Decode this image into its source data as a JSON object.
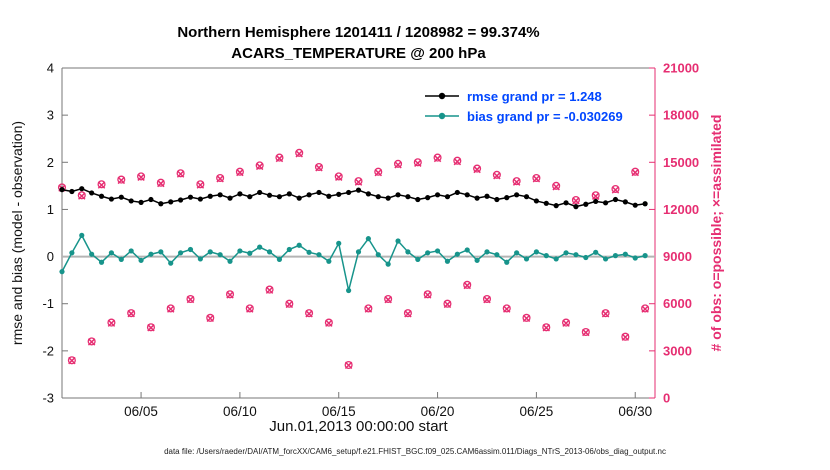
{
  "titles": {
    "line1": "Northern Hemisphere 1201411 / 1208982 = 99.374%",
    "line2": "ACARS_TEMPERATURE @ 200 hPa"
  },
  "axes": {
    "left_label": "rmse and bias (model - observation)",
    "right_label": "# of obs: o=possible; ×=assimilated",
    "x_label": "Jun.01,2013 00:00:00 start",
    "left_ticks": [
      -3,
      -2,
      -1,
      0,
      1,
      2,
      3,
      4
    ],
    "right_ticks": [
      0,
      3000,
      6000,
      9000,
      12000,
      15000,
      18000,
      21000
    ],
    "x_tick_values": [
      4,
      9,
      14,
      19,
      24,
      29
    ],
    "x_tick_labels": [
      "06/05",
      "06/10",
      "06/15",
      "06/20",
      "06/25",
      "06/30"
    ],
    "x_range": [
      0,
      30
    ],
    "left_range": [
      -3,
      4
    ],
    "right_range": [
      0,
      21000
    ]
  },
  "legend": {
    "rmse": "rmse grand pr = 1.248",
    "bias": "bias grand pr = -0.030269"
  },
  "footer": {
    "text": "data file: /Users/raeder/DAI/ATM_forcXX/CAM6_setup/f.e21.FHIST_BGC.f09_025.CAM6assim.011/Diags_NTrS_2013-06/obs_diag_output.nc"
  },
  "colors": {
    "rmse_line": "#000000",
    "bias_line": "#17948b",
    "obs_pink": "#e62e72",
    "legend_text": "#0046ff",
    "zero_line": "#b4b4b4",
    "axis_box": "#777777",
    "tick_text": "#111111"
  },
  "chart_data": {
    "type": "line",
    "title": "Northern Hemisphere 1201411 / 1208982 = 99.374% | ACARS_TEMPERATURE @ 200 hPa",
    "xlabel": "Jun.01,2013 00:00:00 start",
    "ylabel_left": "rmse and bias (model - observation)",
    "ylabel_right": "# of obs: o=possible; ×=assimilated",
    "x_days_since_jun1": [
      0,
      0.5,
      1,
      1.5,
      2,
      2.5,
      3,
      3.5,
      4,
      4.5,
      5,
      5.5,
      6,
      6.5,
      7,
      7.5,
      8,
      8.5,
      9,
      9.5,
      10,
      10.5,
      11,
      11.5,
      12,
      12.5,
      13,
      13.5,
      14,
      14.5,
      15,
      15.5,
      16,
      16.5,
      17,
      17.5,
      18,
      18.5,
      19,
      19.5,
      20,
      20.5,
      21,
      21.5,
      22,
      22.5,
      23,
      23.5,
      24,
      24.5,
      25,
      25.5,
      26,
      26.5,
      27,
      27.5,
      28,
      28.5,
      29,
      29.5
    ],
    "series": [
      {
        "name": "rmse",
        "axis": "left",
        "marker": "filled-circle",
        "color": "#000000",
        "grand_value": 1.248,
        "values": [
          1.42,
          1.38,
          1.44,
          1.35,
          1.28,
          1.22,
          1.26,
          1.18,
          1.15,
          1.21,
          1.12,
          1.16,
          1.2,
          1.26,
          1.22,
          1.28,
          1.31,
          1.24,
          1.33,
          1.27,
          1.36,
          1.3,
          1.27,
          1.33,
          1.24,
          1.31,
          1.36,
          1.28,
          1.32,
          1.36,
          1.41,
          1.33,
          1.27,
          1.24,
          1.31,
          1.27,
          1.21,
          1.25,
          1.31,
          1.27,
          1.36,
          1.31,
          1.24,
          1.28,
          1.21,
          1.25,
          1.31,
          1.27,
          1.18,
          1.13,
          1.08,
          1.14,
          1.06,
          1.11,
          1.17,
          1.14,
          1.21,
          1.16,
          1.09,
          1.12
        ]
      },
      {
        "name": "bias",
        "axis": "left",
        "marker": "filled-circle",
        "color": "#17948b",
        "grand_value": -0.030269,
        "values": [
          -0.32,
          0.08,
          0.45,
          0.05,
          -0.12,
          0.08,
          -0.06,
          0.12,
          -0.08,
          0.05,
          0.1,
          -0.14,
          0.08,
          0.15,
          -0.05,
          0.1,
          0.04,
          -0.1,
          0.12,
          0.07,
          0.2,
          0.1,
          -0.06,
          0.15,
          0.24,
          0.09,
          0.04,
          -0.1,
          0.28,
          -0.72,
          0.1,
          0.38,
          0.04,
          -0.16,
          0.33,
          0.1,
          -0.06,
          0.08,
          0.12,
          -0.1,
          0.05,
          0.14,
          -0.08,
          0.1,
          0.04,
          -0.12,
          0.08,
          -0.05,
          0.1,
          0.02,
          -0.05,
          0.08,
          0.04,
          -0.02,
          0.09,
          -0.05,
          0.02,
          0.05,
          -0.03,
          0.02
        ]
      },
      {
        "name": "obs_possible",
        "axis": "right",
        "marker": "circle",
        "color": "#e62e72",
        "total": 1208982,
        "values": [
          13400,
          2400,
          12900,
          3600,
          13600,
          4800,
          13900,
          5400,
          14100,
          4500,
          13700,
          5700,
          14300,
          6300,
          13600,
          5100,
          14000,
          6600,
          14400,
          5700,
          14800,
          6900,
          15300,
          6000,
          15600,
          5400,
          14700,
          4800,
          14100,
          2100,
          13800,
          5700,
          14400,
          6300,
          14900,
          5400,
          15000,
          6600,
          15300,
          6000,
          15100,
          7200,
          14600,
          6300,
          14200,
          5700,
          13800,
          5100,
          14000,
          4500,
          13500,
          4800,
          12600,
          4200,
          12900,
          5400,
          13300,
          3900,
          14400,
          5700
        ]
      },
      {
        "name": "obs_assimilated",
        "axis": "right",
        "marker": "x",
        "color": "#e62e72",
        "total": 1201411,
        "values": [
          13360,
          2380,
          12850,
          3570,
          13550,
          4760,
          13850,
          5370,
          14050,
          4470,
          13650,
          5660,
          14250,
          6270,
          13550,
          5070,
          13950,
          6560,
          14350,
          5660,
          14740,
          6860,
          15240,
          5960,
          15540,
          5360,
          14650,
          4760,
          14050,
          2080,
          13740,
          5660,
          14340,
          6260,
          14840,
          5360,
          14940,
          6560,
          15240,
          5960,
          15040,
          7160,
          14540,
          6260,
          14140,
          5660,
          13740,
          5070,
          13950,
          4470,
          13440,
          4760,
          12550,
          4170,
          12840,
          5360,
          13240,
          3870,
          14350,
          5660
        ]
      }
    ],
    "legend_position": "top-center-right",
    "grid": false
  }
}
